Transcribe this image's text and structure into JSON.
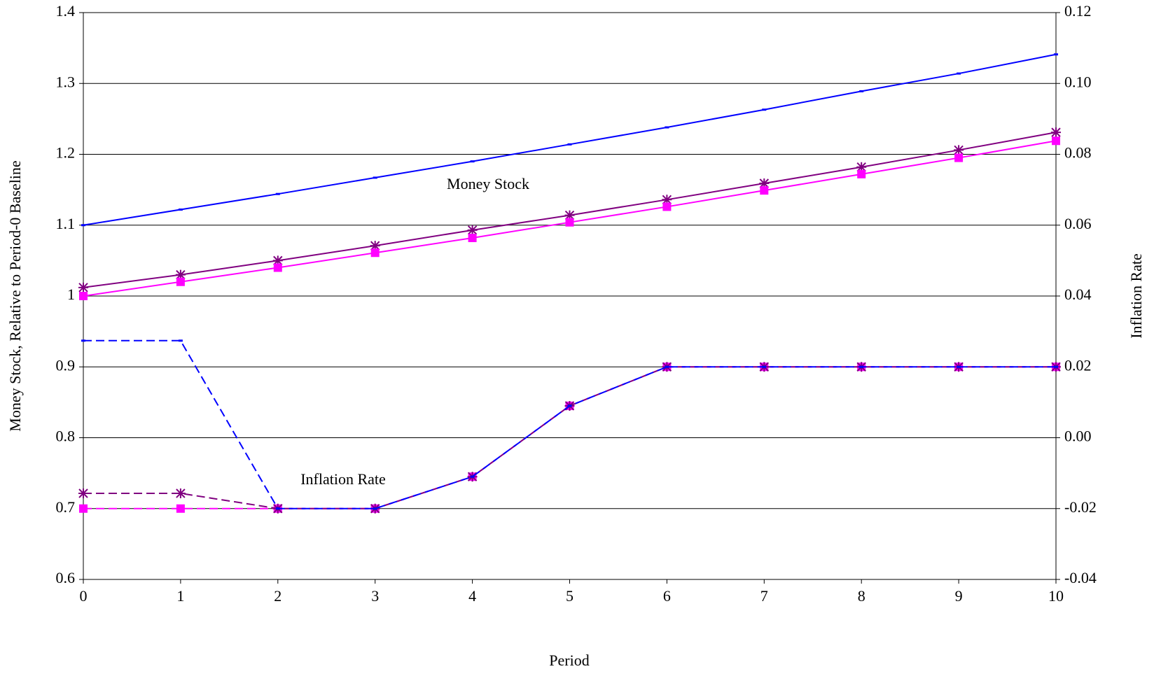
{
  "chart_data": {
    "type": "line",
    "x_label": "Period",
    "y_label": "Money Stock, Relative to Period-0 Baseline",
    "y2_label": "Inflation Rate",
    "annotations": [
      "Money Stock",
      "Inflation Rate"
    ],
    "x": [
      0,
      1,
      2,
      3,
      4,
      5,
      6,
      7,
      8,
      9,
      10
    ],
    "xlim": [
      0,
      10
    ],
    "xticks": [
      0,
      1,
      2,
      3,
      4,
      5,
      6,
      7,
      8,
      9,
      10
    ],
    "ylim": [
      0.6,
      1.4
    ],
    "yticks": [
      0.6,
      0.7,
      0.8,
      0.9,
      1,
      1.1,
      1.2,
      1.3,
      1.4
    ],
    "y2lim": [
      -0.04,
      0.12
    ],
    "y2ticks": [
      -0.04,
      -0.02,
      {
        "value": 0,
        "label": "0.00"
      },
      0.02,
      0.04,
      0.06,
      0.08,
      {
        "value": 0.1,
        "label": "0.10"
      },
      0.12
    ],
    "grid": true,
    "series": [
      {
        "color": "#0000ff",
        "marker": "dash",
        "line": "solid",
        "values": [
          1.1,
          1.122,
          1.144,
          1.167,
          1.19,
          1.214,
          1.238,
          1.263,
          1.289,
          1.314,
          1.341
        ]
      },
      {
        "color": "#800080",
        "marker": "star",
        "line": "solid",
        "values": [
          1.012,
          1.03,
          1.05,
          1.071,
          1.093,
          1.114,
          1.136,
          1.159,
          1.182,
          1.206,
          1.231
        ]
      },
      {
        "color": "#ff00ff",
        "marker": "square",
        "line": "solid",
        "values": [
          1.0,
          1.02,
          1.04,
          1.061,
          1.082,
          1.104,
          1.126,
          1.149,
          1.172,
          1.195,
          1.219
        ]
      },
      {
        "color": "#ff00ff",
        "marker": "square",
        "line": "dashed",
        "axis": "y2",
        "values": [
          -0.02,
          -0.02,
          -0.02,
          -0.02,
          -0.011,
          0.009,
          0.02,
          0.02,
          0.02,
          0.02,
          0.02
        ]
      },
      {
        "color": "#800080",
        "marker": "star",
        "line": "dashed",
        "axis": "y2",
        "values": [
          -0.0157,
          -0.0157,
          -0.02,
          -0.02,
          -0.011,
          0.009,
          0.02,
          0.02,
          0.02,
          0.02,
          0.02
        ]
      },
      {
        "color": "#0000ff",
        "marker": "dash",
        "line": "dashed",
        "axis": "y2",
        "values": [
          0.0274,
          0.0274,
          -0.02,
          -0.02,
          -0.011,
          0.009,
          0.02,
          0.02,
          0.02,
          0.02,
          0.02
        ]
      }
    ]
  }
}
